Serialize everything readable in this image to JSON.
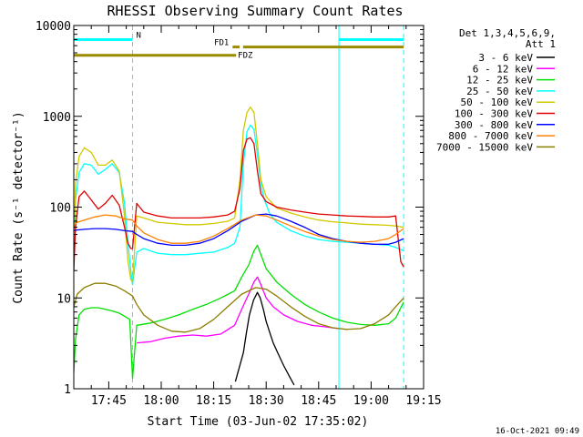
{
  "chart_data": {
    "type": "line",
    "title": "RHESSI Observing Summary Count Rates",
    "xlabel": "Start Time (03-Jun-02 17:35:02)",
    "ylabel": "Count Rate (s⁻¹ detector⁻¹)",
    "yscale": "log",
    "ylim": [
      1,
      10000
    ],
    "xlim_minutes": [
      0,
      100
    ],
    "x_tick_labels": [
      "17:45",
      "18:00",
      "18:15",
      "18:30",
      "18:45",
      "19:00",
      "19:15"
    ],
    "x_tick_minutes": [
      10,
      25,
      40,
      55,
      70,
      85,
      100
    ],
    "y_tick_labels": [
      "1",
      "10",
      "100",
      "1000",
      "10000"
    ],
    "y_tick_values": [
      1,
      10,
      100,
      1000,
      10000
    ],
    "legend_header": [
      "Det 1,3,4,5,6,9,",
      "Att 1"
    ],
    "footer_timestamp": "16-Oct-2021 09:49",
    "night_boundaries_minutes": [
      0,
      16.8,
      75.8,
      94.3
    ],
    "flags": [
      {
        "label": "N",
        "color": "#00ffff",
        "segments": [
          [
            0,
            16.8
          ],
          [
            75.8,
            94.3
          ]
        ],
        "level": 7000
      },
      {
        "label": "FD1",
        "color": "#9b8b00",
        "segments": [
          [
            45.4,
            47.4
          ],
          [
            48.4,
            94.3
          ]
        ],
        "level": 5800
      },
      {
        "label": "FDZ",
        "color": "#9b8b00",
        "segments": [
          [
            0,
            46.4
          ]
        ],
        "level": 4700
      }
    ],
    "series": [
      {
        "name": "3 - 6 keV",
        "color": "#000000",
        "x": [
          46.2,
          48.5,
          49.3,
          50.2,
          51.4,
          52.5,
          53.3,
          54.2,
          55.0,
          56.0,
          57.0,
          58.5,
          60.0,
          61.5,
          63.0
        ],
        "y": [
          1.2,
          2.5,
          4.0,
          6.5,
          9.5,
          11.5,
          10.0,
          7.5,
          5.5,
          4.2,
          3.2,
          2.4,
          1.8,
          1.4,
          1.1
        ]
      },
      {
        "name": "6 - 12 keV",
        "color": "#ff00ff",
        "x": [
          18,
          22,
          26,
          30,
          34,
          38,
          42,
          46,
          48,
          50,
          51.5,
          52.5,
          53.5,
          55,
          57,
          60,
          64,
          68,
          72,
          75.5
        ],
        "y": [
          3.2,
          3.3,
          3.6,
          3.8,
          3.9,
          3.8,
          4.0,
          5.0,
          7.5,
          11.0,
          15.0,
          17.0,
          14.0,
          10.0,
          8.0,
          6.5,
          5.5,
          5.0,
          4.8,
          4.6
        ]
      },
      {
        "name": "12 - 25 keV",
        "color": "#00e000",
        "x": [
          0,
          0.5,
          1.5,
          3,
          5,
          7,
          9,
          11,
          13,
          14.5,
          16,
          16.8,
          18,
          22,
          26,
          30,
          34,
          38,
          42,
          46,
          48,
          50,
          51.5,
          52.5,
          53.5,
          55,
          58,
          62,
          66,
          70,
          74,
          78,
          82,
          86,
          90,
          92,
          94.3
        ],
        "y": [
          1.5,
          3.5,
          6.5,
          7.5,
          7.8,
          7.8,
          7.5,
          7.2,
          6.8,
          6.3,
          5.8,
          1.3,
          5.0,
          5.3,
          5.8,
          6.5,
          7.5,
          8.5,
          10.0,
          12.0,
          17.0,
          23.0,
          33.0,
          38.0,
          30.0,
          21.0,
          15.0,
          11.0,
          8.5,
          7.0,
          6.0,
          5.4,
          5.1,
          5.0,
          5.2,
          6.0,
          9.0
        ]
      },
      {
        "name": "25 - 50 keV",
        "color": "#00ffff",
        "x": [
          0,
          0.5,
          1.5,
          3,
          5,
          7,
          9,
          11,
          13,
          14.5,
          15.5,
          16.3,
          16.8,
          18,
          20,
          24,
          28,
          32,
          36,
          40,
          44,
          46,
          47.5,
          48.5,
          49.5,
          50.5,
          51.5,
          52.5,
          53.5,
          54.5,
          56,
          58,
          62,
          66,
          70,
          74,
          78,
          82,
          86,
          90,
          92,
          94.3
        ],
        "y": [
          20,
          120,
          240,
          300,
          290,
          230,
          260,
          300,
          240,
          110,
          40,
          20,
          14,
          32,
          35,
          31,
          30,
          30,
          31,
          32,
          36,
          40,
          60,
          300,
          680,
          800,
          720,
          380,
          180,
          120,
          85,
          68,
          55,
          48,
          44,
          42,
          41,
          40,
          39,
          38,
          36,
          33
        ]
      },
      {
        "name": "50 - 100 keV",
        "color": "#d4c800",
        "x": [
          0,
          0.5,
          1.5,
          3,
          5,
          7,
          9,
          11,
          13,
          14.5,
          15.5,
          16.3,
          16.8,
          18,
          20,
          24,
          28,
          32,
          36,
          40,
          44,
          46,
          47.5,
          48.5,
          49.5,
          50.5,
          51.5,
          52.5,
          53.5,
          55,
          58,
          62,
          66,
          70,
          74,
          78,
          82,
          86,
          90,
          92,
          94.3
        ],
        "y": [
          30,
          180,
          360,
          450,
          400,
          290,
          290,
          330,
          250,
          80,
          25,
          16,
          15,
          80,
          76,
          68,
          66,
          64,
          64,
          66,
          70,
          76,
          200,
          700,
          1100,
          1260,
          1100,
          500,
          200,
          130,
          98,
          86,
          78,
          72,
          69,
          67,
          65,
          64,
          63,
          62,
          60
        ]
      },
      {
        "name": "100 - 300 keV",
        "color": "#e00000",
        "x": [
          0,
          0.5,
          1.5,
          3,
          5,
          7,
          9,
          11,
          13,
          14.5,
          15.5,
          16.3,
          16.8,
          18,
          20,
          24,
          28,
          32,
          36,
          40,
          44,
          46,
          47.5,
          48.5,
          49.5,
          50.5,
          51.5,
          52.5,
          53.5,
          55,
          58,
          62,
          66,
          70,
          74,
          78,
          82,
          86,
          90,
          92,
          93.5,
          94.3
        ],
        "y": [
          20,
          60,
          130,
          150,
          120,
          95,
          110,
          135,
          105,
          60,
          40,
          35,
          35,
          110,
          88,
          80,
          76,
          76,
          76,
          78,
          82,
          90,
          160,
          420,
          560,
          580,
          500,
          250,
          140,
          115,
          100,
          93,
          88,
          84,
          82,
          80,
          79,
          78,
          78,
          80,
          25,
          22
        ]
      },
      {
        "name": "300 - 800 keV",
        "color": "#0000ff",
        "x": [
          0,
          1,
          3,
          6,
          9,
          12,
          14.5,
          16.8,
          18,
          20,
          24,
          28,
          32,
          36,
          40,
          44,
          48,
          52,
          55,
          58,
          62,
          66,
          70,
          74,
          78,
          82,
          86,
          90,
          92,
          94.3
        ],
        "y": [
          55,
          56,
          57,
          58,
          58,
          57,
          55,
          54,
          50,
          45,
          40,
          38,
          38,
          40,
          45,
          55,
          70,
          82,
          84,
          80,
          70,
          60,
          50,
          45,
          42,
          40,
          39,
          39,
          41,
          45
        ]
      },
      {
        "name": "800 - 7000 keV",
        "color": "#ff8000",
        "x": [
          0,
          1,
          3,
          6,
          9,
          12,
          14.5,
          16.8,
          18,
          20,
          24,
          28,
          32,
          36,
          40,
          44,
          48,
          52,
          55,
          58,
          62,
          66,
          70,
          74,
          78,
          82,
          86,
          90,
          92,
          94.3
        ],
        "y": [
          62,
          68,
          72,
          78,
          82,
          80,
          74,
          72,
          62,
          52,
          44,
          40,
          40,
          42,
          48,
          58,
          72,
          82,
          80,
          72,
          62,
          54,
          48,
          44,
          42,
          41,
          42,
          45,
          50,
          58
        ]
      },
      {
        "name": "7000 - 15000 keV",
        "color": "#8b7d00",
        "x": [
          0,
          1,
          3,
          6,
          9,
          12,
          14.5,
          16.8,
          18,
          20,
          24,
          28,
          32,
          36,
          40,
          44,
          48,
          52,
          55,
          58,
          62,
          66,
          70,
          74,
          78,
          82,
          86,
          90,
          92,
          94.3
        ],
        "y": [
          8,
          11,
          13,
          14.5,
          14.5,
          13.5,
          12,
          10.5,
          8.5,
          6.5,
          5.0,
          4.3,
          4.2,
          4.6,
          5.8,
          8.0,
          11.0,
          13.0,
          12.5,
          10.5,
          8.0,
          6.3,
          5.2,
          4.7,
          4.5,
          4.6,
          5.2,
          6.5,
          8.0,
          10.0
        ]
      }
    ]
  }
}
